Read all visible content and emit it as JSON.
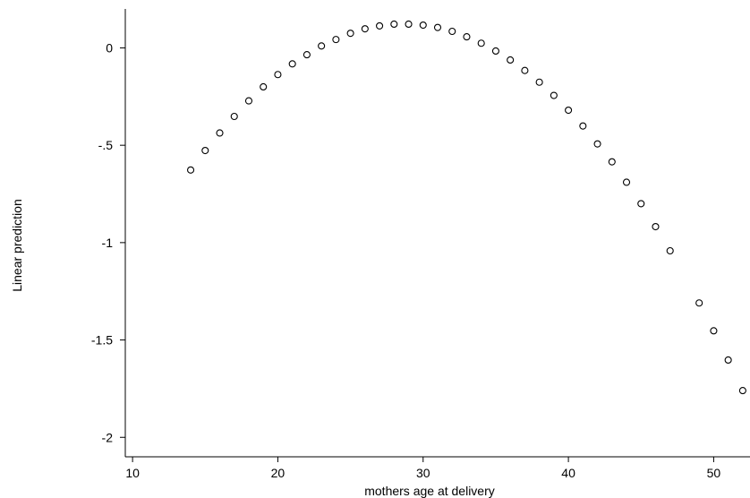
{
  "chart_data": {
    "type": "scatter",
    "xlabel": "mothers age at delivery",
    "ylabel": "Linear prediction",
    "xlim": [
      9.5,
      52.5
    ],
    "ylim": [
      -2.1,
      0.2
    ],
    "xticks": [
      10,
      20,
      30,
      40,
      50
    ],
    "yticks": [
      0,
      -0.5,
      -1,
      -1.5,
      -2
    ],
    "xtick_labels": [
      "10",
      "20",
      "30",
      "40",
      "50"
    ],
    "ytick_labels": [
      "0",
      "-.5",
      "-1",
      "-1.5",
      "-2"
    ],
    "grid": false,
    "legend": "none",
    "marker": "hollow-circle",
    "points": [
      {
        "x": 14,
        "y": -0.627
      },
      {
        "x": 15,
        "y": -0.527
      },
      {
        "x": 16,
        "y": -0.437
      },
      {
        "x": 17,
        "y": -0.352
      },
      {
        "x": 18,
        "y": -0.272
      },
      {
        "x": 19,
        "y": -0.2
      },
      {
        "x": 20,
        "y": -0.137
      },
      {
        "x": 21,
        "y": -0.082
      },
      {
        "x": 22,
        "y": -0.035
      },
      {
        "x": 23,
        "y": 0.01
      },
      {
        "x": 24,
        "y": 0.043
      },
      {
        "x": 25,
        "y": 0.075
      },
      {
        "x": 26,
        "y": 0.098
      },
      {
        "x": 27,
        "y": 0.113
      },
      {
        "x": 28,
        "y": 0.122
      },
      {
        "x": 29,
        "y": 0.122
      },
      {
        "x": 30,
        "y": 0.117
      },
      {
        "x": 31,
        "y": 0.105
      },
      {
        "x": 32,
        "y": 0.085
      },
      {
        "x": 33,
        "y": 0.057
      },
      {
        "x": 34,
        "y": 0.024
      },
      {
        "x": 35,
        "y": -0.016
      },
      {
        "x": 36,
        "y": -0.062
      },
      {
        "x": 37,
        "y": -0.116
      },
      {
        "x": 38,
        "y": -0.176
      },
      {
        "x": 39,
        "y": -0.244
      },
      {
        "x": 40,
        "y": -0.32
      },
      {
        "x": 41,
        "y": -0.401
      },
      {
        "x": 42,
        "y": -0.493
      },
      {
        "x": 43,
        "y": -0.585
      },
      {
        "x": 44,
        "y": -0.69
      },
      {
        "x": 45,
        "y": -0.8
      },
      {
        "x": 46,
        "y": -0.918
      },
      {
        "x": 47,
        "y": -1.042
      },
      {
        "x": 49,
        "y": -1.31
      },
      {
        "x": 50,
        "y": -1.453
      },
      {
        "x": 51,
        "y": -1.603
      },
      {
        "x": 52,
        "y": -1.76
      }
    ]
  }
}
